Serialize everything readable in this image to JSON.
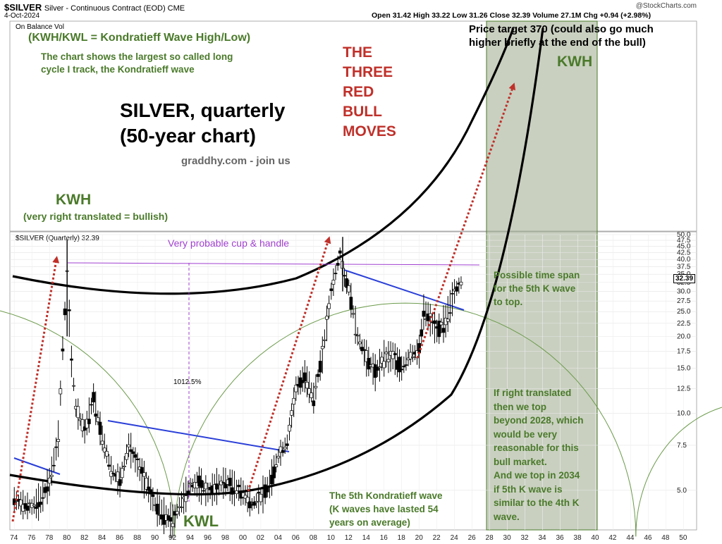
{
  "header": {
    "symbol": "$SILVER",
    "description": "Silver - Continuous Contract (EOD) CME",
    "date": "4-Oct-2024",
    "ohlc": "Open 31.42  High 33.22  Low 31.26  Close 32.39  Volume 27.1M  Chg +0.94 (+2.98%)",
    "credit": "@StockCharts.com",
    "obv_label": "On Balance Vol",
    "panel_label": "$SILVER (Quarterly) 32.39"
  },
  "annotations": {
    "kwh_def": "(KWH/KWL = Kondratieff Wave High/Low)",
    "cycle_1": "The chart shows the largest so called long",
    "cycle_2": "cycle I track, the Kondratieff wave",
    "title_1": "SILVER, quarterly",
    "title_2": "(50-year chart)",
    "site": "graddhy.com - join us",
    "kwh_left": "KWH",
    "kwh_left_sub": "(very right translated = bullish)",
    "red_1": "THE",
    "red_2": "THREE",
    "red_3": "RED",
    "red_4": "BULL",
    "red_5": "MOVES",
    "target_1": "Price target 370 (could also go much",
    "target_2": "higher briefly at the end of the bull)",
    "kwh_right": "KWH",
    "cup": "Very probable cup & handle",
    "pct": "1012.5%",
    "span_1": "Possible time span",
    "span_2": "for the 5th K wave",
    "span_3": "to top.",
    "rt_1": "If right translated",
    "rt_2": "then we top",
    "rt_3": "beyond 2028, which",
    "rt_4": "would be very",
    "rt_5": "reasonable for this",
    "rt_6": "bull market.",
    "rt_7": "And we top in 2034",
    "rt_8": "if 5th K wave is",
    "rt_9": "similar to the 4th K",
    "rt_10": "wave.",
    "fifth_1": "The 5th Kondratieff wave",
    "fifth_2": "(K waves have lasted 54",
    "fifth_3": "years on average)",
    "kwl": "KWL"
  },
  "chart_data": {
    "type": "line",
    "title": "SILVER, quarterly",
    "subtitle": "(50-year chart)",
    "ylabel": "",
    "xlabel": "",
    "y_scale": "log",
    "ylim": [
      3.5,
      50
    ],
    "xlim": [
      1973.5,
      2051.5
    ],
    "y_ticks": [
      5.0,
      7.5,
      10.0,
      12.5,
      15.0,
      17.5,
      20.0,
      22.5,
      25.0,
      27.5,
      30.0,
      32.5,
      35.0,
      37.5,
      40.0,
      42.5,
      45.0,
      47.5,
      50.0
    ],
    "x_ticks": [
      "74",
      "76",
      "78",
      "80",
      "82",
      "84",
      "86",
      "88",
      "90",
      "92",
      "94",
      "96",
      "98",
      "00",
      "02",
      "04",
      "06",
      "08",
      "10",
      "12",
      "14",
      "16",
      "18",
      "20",
      "22",
      "24",
      "26",
      "28",
      "30",
      "32",
      "34",
      "36",
      "38",
      "40",
      "42",
      "44",
      "46",
      "48",
      "50"
    ],
    "last_price": "32.39",
    "series": [
      {
        "values_x": [
          1974,
          1975,
          1976,
          1977,
          1978,
          1979,
          1979.5,
          1980,
          1980.5,
          1981,
          1982,
          1983,
          1984,
          1985,
          1986,
          1987,
          1988,
          1989,
          1990,
          1991,
          1992,
          1993,
          1994,
          1995,
          1996,
          1997,
          1998,
          1999,
          2000,
          2001,
          2002,
          2003,
          2004,
          2005,
          2006,
          2007,
          2008,
          2009,
          2010,
          2011,
          2011.5,
          2012,
          2013,
          2014,
          2015,
          2016,
          2017,
          2018,
          2019,
          2020,
          2020.5,
          2021,
          2022,
          2023,
          2024,
          2024.75
        ],
        "values_y": [
          4.6,
          4.4,
          4.3,
          4.6,
          5.4,
          8.0,
          18.0,
          35.0,
          16.0,
          10.5,
          8.5,
          11.5,
          8.0,
          6.0,
          5.4,
          7.5,
          6.3,
          5.3,
          4.4,
          4.0,
          3.8,
          4.5,
          5.2,
          5.3,
          4.9,
          5.2,
          5.4,
          5.1,
          4.9,
          4.4,
          4.7,
          5.3,
          6.8,
          7.7,
          12.5,
          14.0,
          11.5,
          17.0,
          30.0,
          42.0,
          34.0,
          31.0,
          20.0,
          16.5,
          14.5,
          16.5,
          16.8,
          15.0,
          17.0,
          17.5,
          25.0,
          24.0,
          21.0,
          23.0,
          30.0,
          32.39
        ]
      }
    ]
  }
}
